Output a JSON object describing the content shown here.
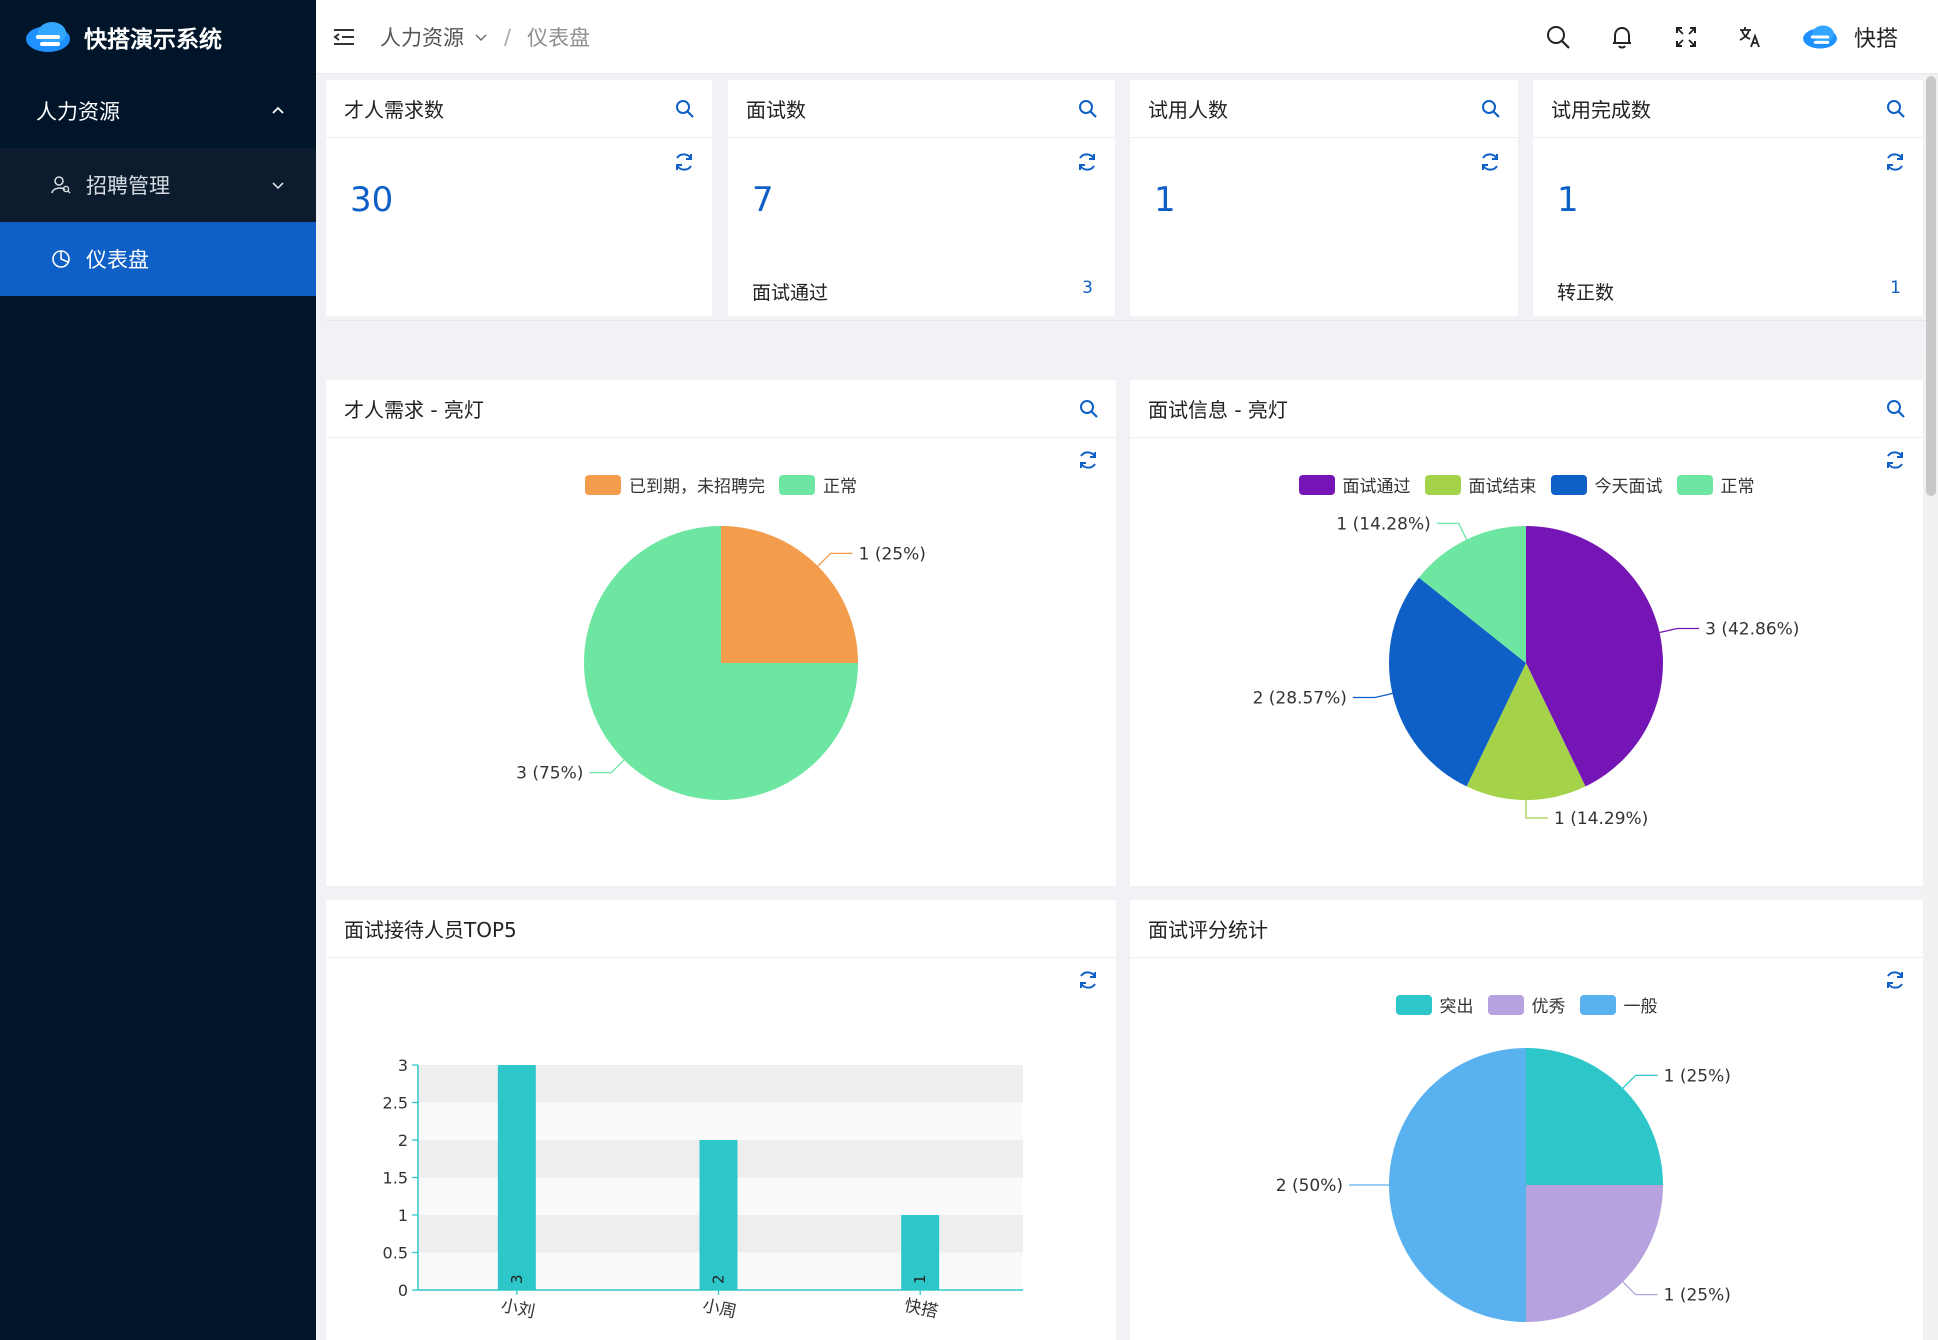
{
  "app": {
    "title": "快搭演示系统"
  },
  "sidebar": {
    "group_label": "人力资源",
    "submenu_label": "招聘管理",
    "active_label": "仪表盘"
  },
  "header": {
    "breadcrumb": [
      "人力资源",
      "仪表盘"
    ],
    "user_name": "快搭"
  },
  "stats": [
    {
      "title": "才人需求数",
      "value": "30",
      "sub_label": "",
      "sub_value": ""
    },
    {
      "title": "面试数",
      "value": "7",
      "sub_label": "面试通过",
      "sub_value": "3"
    },
    {
      "title": "试用人数",
      "value": "1",
      "sub_label": "",
      "sub_value": ""
    },
    {
      "title": "试用完成数",
      "value": "1",
      "sub_label": "转正数",
      "sub_value": "1"
    }
  ],
  "panels": {
    "demand": {
      "title": "才人需求 - 亮灯"
    },
    "interview": {
      "title": "面试信息 - 亮灯"
    },
    "top5": {
      "title": "面试接待人员TOP5"
    },
    "score": {
      "title": "面试评分统计"
    }
  },
  "chart_data": [
    {
      "type": "pie",
      "title": "才人需求 - 亮灯",
      "legend_position": "top",
      "slices": [
        {
          "name": "已到期，未招聘完",
          "value": 1,
          "label": "1 (25%)",
          "color": "#f39c4c"
        },
        {
          "name": "正常",
          "value": 3,
          "label": "3 (75%)",
          "color": "#6ce6a0"
        }
      ]
    },
    {
      "type": "pie",
      "title": "面试信息 - 亮灯",
      "legend_position": "top",
      "slices": [
        {
          "name": "面试通过",
          "value": 3,
          "label": "3 (42.86%)",
          "color": "#7515b5"
        },
        {
          "name": "面试结束",
          "value": 1,
          "label": "1 (14.29%)",
          "color": "#a4d249"
        },
        {
          "name": "今天面试",
          "value": 2,
          "label": "2 (28.57%)",
          "color": "#0e5fc6"
        },
        {
          "name": "正常",
          "value": 1,
          "label": "1 (14.28%)",
          "color": "#6ce6a0"
        }
      ]
    },
    {
      "type": "bar",
      "title": "面试接待人员TOP5",
      "categories": [
        "小刘",
        "小周",
        "快搭"
      ],
      "values": [
        3,
        2,
        1
      ],
      "value_labels": [
        "3",
        "2",
        "1"
      ],
      "ylim": [
        0,
        3
      ],
      "yticks": [
        "0",
        "0.5",
        "1",
        "1.5",
        "2",
        "2.5",
        "3"
      ],
      "color": "#2ec7c9",
      "grid": "banded"
    },
    {
      "type": "pie",
      "title": "面试评分统计",
      "legend_position": "top",
      "slices": [
        {
          "name": "突出",
          "value": 1,
          "label": "1 (25%)",
          "color": "#2ec7c9"
        },
        {
          "name": "优秀",
          "value": 1,
          "label": "1 (25%)",
          "color": "#b6a2de"
        },
        {
          "name": "一般",
          "value": 2,
          "label": "2 (50%)",
          "color": "#5ab1ef"
        }
      ]
    }
  ]
}
